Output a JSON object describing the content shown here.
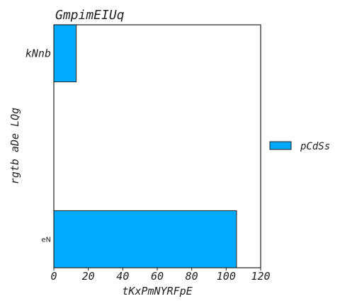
{
  "chart_data": {
    "type": "bar",
    "orientation": "horizontal",
    "title": "GmpimEIUq",
    "xlabel": "tKxPmNYRFpE",
    "ylabel": "rgtb aDe LQg",
    "categories": [
      "kNnb",
      "eN"
    ],
    "series": [
      {
        "name": "pCdSs",
        "values": [
          13,
          106
        ],
        "color": "#00aaff"
      }
    ],
    "xlim": [
      0,
      120
    ],
    "xticks": [
      "0",
      "20",
      "40",
      "60",
      "80",
      "100",
      "120"
    ],
    "grid": false,
    "legend": "right"
  }
}
